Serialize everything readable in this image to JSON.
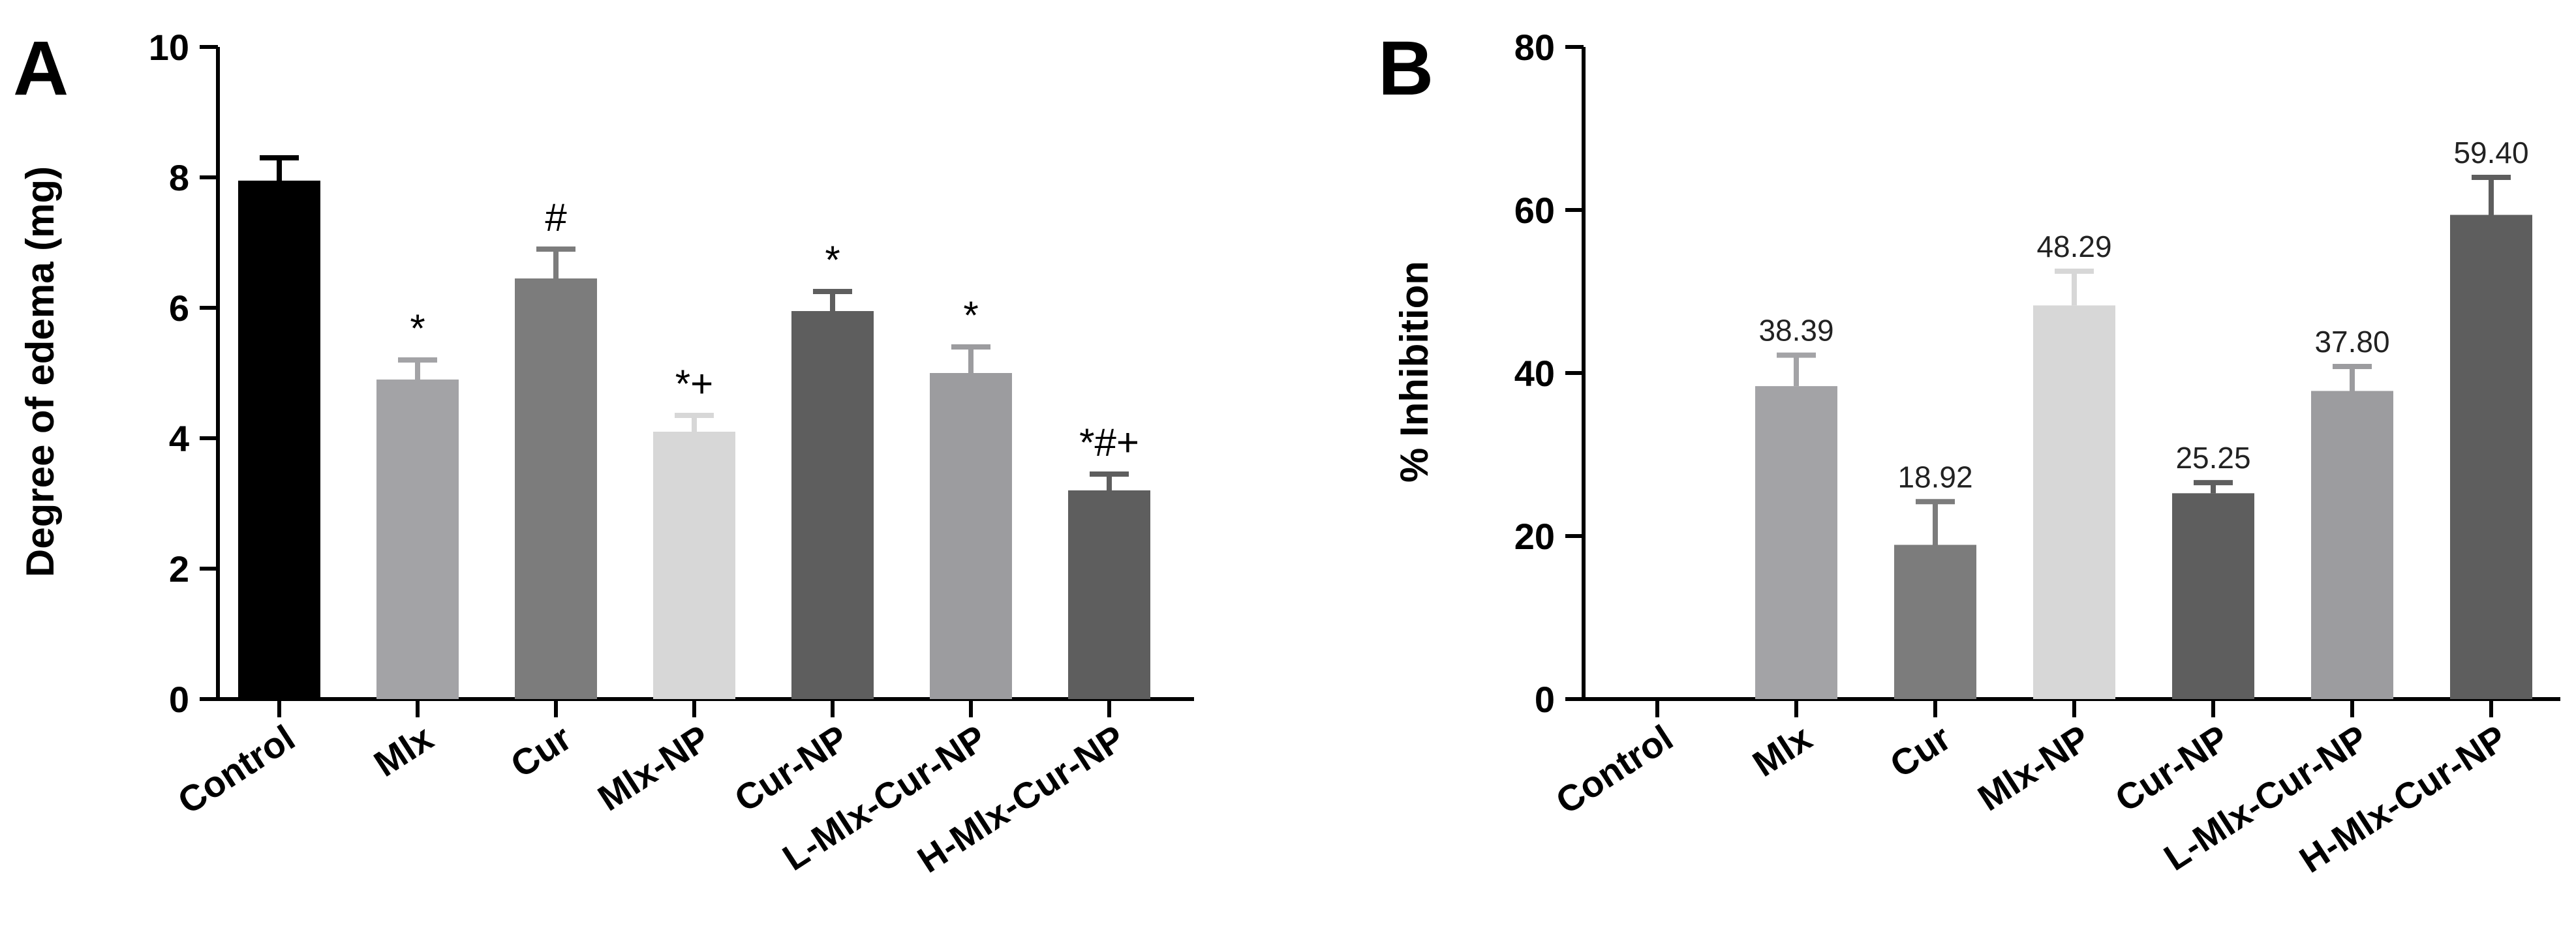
{
  "chart_data": [
    {
      "type": "bar",
      "panel_label": "A",
      "title": "",
      "xlabel": "",
      "ylabel": "Degree of edema (mg)",
      "ylim": [
        0,
        10
      ],
      "yticks": [
        "0",
        "2",
        "4",
        "6",
        "8",
        "10"
      ],
      "categories": [
        "Control",
        "Mlx",
        "Cur",
        "Mlx-NP",
        "Cur-NP",
        "L-Mlx-Cur-NP",
        "H-Mlx-Cur-NP"
      ],
      "values": [
        7.95,
        4.9,
        6.45,
        4.1,
        5.95,
        5.0,
        3.2
      ],
      "errors": [
        0.35,
        0.3,
        0.45,
        0.25,
        0.3,
        0.4,
        0.25
      ],
      "annotations": [
        "",
        "*",
        "#",
        "*+",
        "*",
        "*",
        "*#+"
      ],
      "colors": [
        "#000000",
        "#a3a3a6",
        "#7c7c7c",
        "#d7d7d7",
        "#5e5e5e",
        "#9c9c9f",
        "#5e5e5e"
      ]
    },
    {
      "type": "bar",
      "panel_label": "B",
      "title": "",
      "xlabel": "",
      "ylabel": "% Inhibition",
      "ylim": [
        0,
        80
      ],
      "yticks": [
        "0",
        "20",
        "40",
        "60",
        "80"
      ],
      "categories": [
        "Control",
        "Mlx",
        "Cur",
        "Mlx-NP",
        "Cur-NP",
        "L-Mlx-Cur-NP",
        "H-Mlx-Cur-NP"
      ],
      "values": [
        0,
        38.39,
        18.92,
        48.29,
        25.25,
        37.8,
        59.4
      ],
      "errors": [
        0,
        3.8,
        5.3,
        4.2,
        1.3,
        3.0,
        4.6
      ],
      "value_labels": [
        "",
        "38.39",
        "18.92",
        "48.29",
        "25.25",
        "37.80",
        "59.40"
      ],
      "colors": [
        "#000000",
        "#a3a3a6",
        "#7c7c7c",
        "#d7d7d7",
        "#5e5e5e",
        "#9c9c9f",
        "#5e5e5e"
      ]
    }
  ]
}
